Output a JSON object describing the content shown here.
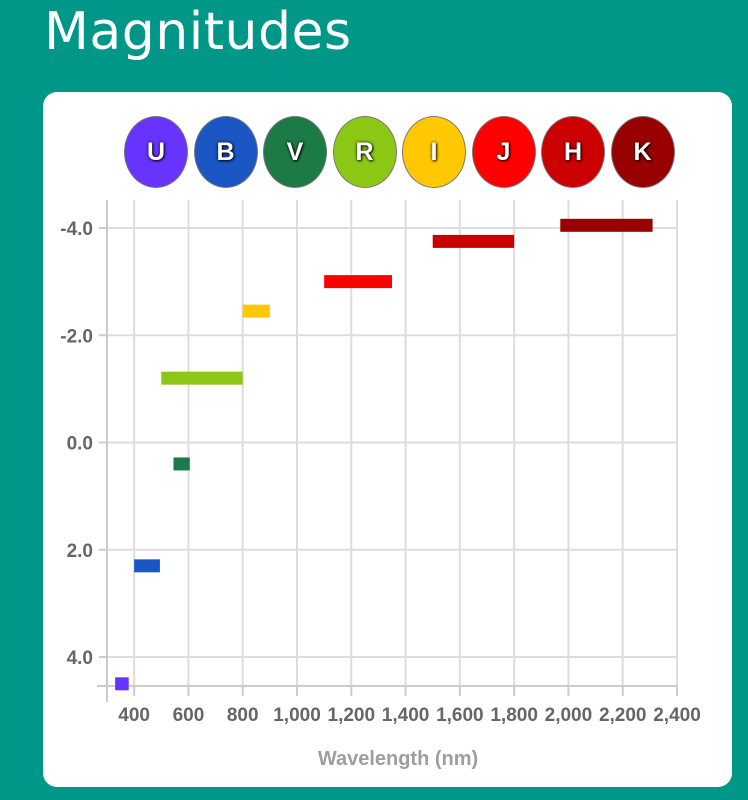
{
  "header": {
    "title": "Magnitudes"
  },
  "bands": [
    {
      "label": "U",
      "color": "#6633ff"
    },
    {
      "label": "B",
      "color": "#1a56c4"
    },
    {
      "label": "V",
      "color": "#1b7a45"
    },
    {
      "label": "R",
      "color": "#8dc716"
    },
    {
      "label": "I",
      "color": "#ffc800"
    },
    {
      "label": "J",
      "color": "#ff0000"
    },
    {
      "label": "H",
      "color": "#cc0000"
    },
    {
      "label": "K",
      "color": "#990000"
    }
  ],
  "chart_data": {
    "type": "bar",
    "title": "",
    "xlabel": "Wavelength (nm)",
    "ylabel": "",
    "xlim": [
      300,
      2400
    ],
    "ylim": [
      -4.2,
      4.6
    ],
    "y_inverted": true,
    "x_ticks": [
      400,
      600,
      800,
      1000,
      1200,
      1400,
      1600,
      1800,
      2000,
      2200,
      2400
    ],
    "x_tick_labels": [
      "400",
      "600",
      "800",
      "1,000",
      "1,200",
      "1,400",
      "1,600",
      "1,800",
      "2,000",
      "2,200",
      "2,400"
    ],
    "y_ticks": [
      -4,
      -2,
      0,
      2,
      4
    ],
    "y_tick_labels": [
      "-4.0",
      "-2.0",
      "0.0",
      "2.0",
      "4.0"
    ],
    "grid": true,
    "series": [
      {
        "band": "U",
        "x_start": 330,
        "x_end": 380,
        "y": 4.5,
        "color": "#6633ff"
      },
      {
        "band": "B",
        "x_start": 400,
        "x_end": 495,
        "y": 2.3,
        "color": "#1a56c4"
      },
      {
        "band": "V",
        "x_start": 545,
        "x_end": 605,
        "y": 0.4,
        "color": "#1b7a45"
      },
      {
        "band": "R",
        "x_start": 500,
        "x_end": 800,
        "y": -1.2,
        "color": "#8dc716"
      },
      {
        "band": "I",
        "x_start": 800,
        "x_end": 900,
        "y": -2.45,
        "color": "#ffc800"
      },
      {
        "band": "J",
        "x_start": 1100,
        "x_end": 1350,
        "y": -3.0,
        "color": "#ff0000"
      },
      {
        "band": "H",
        "x_start": 1500,
        "x_end": 1800,
        "y": -3.75,
        "color": "#cc0000"
      },
      {
        "band": "K",
        "x_start": 1970,
        "x_end": 2310,
        "y": -4.05,
        "color": "#990000"
      }
    ]
  }
}
